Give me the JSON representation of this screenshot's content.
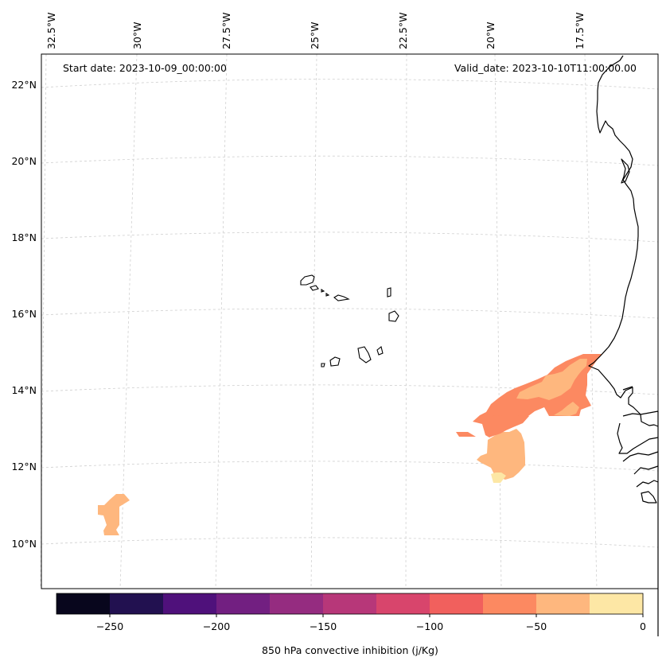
{
  "map": {
    "start_date": "Start date: 2023-10-09_00:00:00",
    "valid_date": "Valid_date: 2023-10-10T11:00:00.00",
    "lon_labels": [
      "32.5°W",
      "30°W",
      "27.5°W",
      "25°W",
      "22.5°W",
      "20°W",
      "17.5°W"
    ],
    "lat_labels": [
      "22°N",
      "20°N",
      "18°N",
      "16°N",
      "14°N",
      "12°N",
      "10°N"
    ],
    "features": [
      "Cabo Verde islands",
      "West African coast (Senegal, Gambia, Guinea-Bissau, Mauritania)"
    ]
  },
  "colorbar": {
    "label": "850 hPa convective inhibition (j/Kg)",
    "ticks": [
      "−250",
      "−200",
      "−150",
      "−100",
      "−50",
      "0"
    ],
    "colors": [
      "#08061d",
      "#221150",
      "#4f117b",
      "#721f81",
      "#952c80",
      "#b73779",
      "#d8456c",
      "#f1605d",
      "#fc8961",
      "#feb77e",
      "#fde7a5"
    ],
    "range": [
      -275,
      0
    ]
  }
}
